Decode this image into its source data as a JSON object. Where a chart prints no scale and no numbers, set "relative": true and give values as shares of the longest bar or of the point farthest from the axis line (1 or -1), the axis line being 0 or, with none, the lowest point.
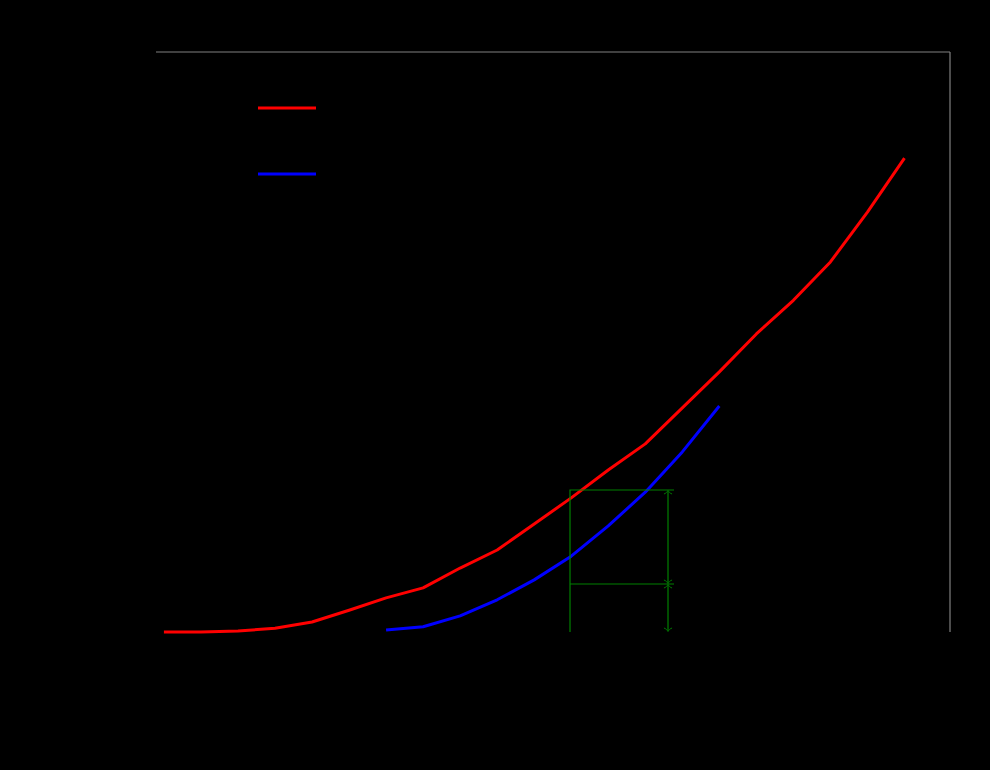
{
  "chart_data": {
    "type": "line",
    "relative": true,
    "marker": "none",
    "line_style": "solid",
    "categories": [
      null,
      null,
      null,
      null,
      null,
      null,
      null,
      null,
      null,
      null,
      null,
      null,
      null,
      null,
      null,
      null,
      null,
      null,
      null,
      null,
      null
    ],
    "series": [
      {
        "color": "#ff0000",
        "values": [
          0,
          0,
          0.002,
          0.008,
          0.021,
          0.046,
          0.072,
          0.093,
          0.135,
          0.173,
          0.228,
          0.283,
          0.342,
          0.397,
          0.473,
          0.549,
          0.629,
          0.7,
          0.781,
          0.886,
          1.0
        ]
      },
      {
        "color": "#0000ff",
        "values": [
          null,
          null,
          null,
          null,
          null,
          null,
          0.004,
          0.011,
          0.034,
          0.068,
          0.11,
          0.16,
          0.224,
          0.295,
          0.38,
          0.477,
          null,
          null,
          null,
          null,
          null
        ]
      }
    ]
  }
}
